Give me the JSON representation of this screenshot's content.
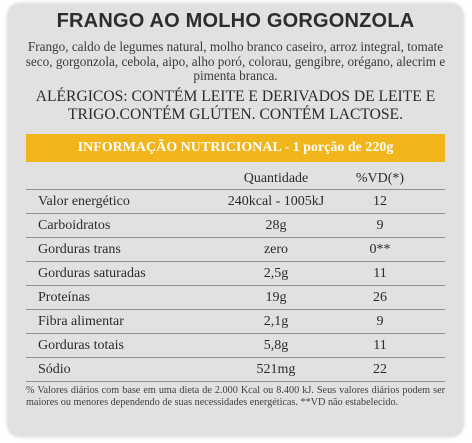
{
  "product": {
    "title": "FRANGO AO MOLHO GORGONZOLA",
    "ingredients": "Frango, caldo de legumes natural, molho branco caseiro, arroz integral, tomate seco, gorgonzola, cebola, aipo, alho poró, colorau, gengibre, orégano, alecrim e pimenta branca.",
    "allergens": "ALÉRGICOS: CONTÉM LEITE E DERIVADOS DE LEITE E TRIGO.CONTÉM GLÚTEN. CONTÉM LACTOSE."
  },
  "nutrition": {
    "banner": "INFORMAÇÃO NUTRICIONAL - 1 porção de 220g",
    "headers": {
      "name": "",
      "quantity": "Quantidade",
      "vd": "%VD(*)"
    },
    "rows": [
      {
        "name": "Valor energético",
        "quantity": "240kcal - 1005kJ",
        "vd": "12"
      },
      {
        "name": "Carboidratos",
        "quantity": "28g",
        "vd": "9"
      },
      {
        "name": "Gorduras trans",
        "quantity": "zero",
        "vd": "0**"
      },
      {
        "name": "Gorduras saturadas",
        "quantity": "2,5g",
        "vd": "11"
      },
      {
        "name": "Proteínas",
        "quantity": "19g",
        "vd": "26"
      },
      {
        "name": "Fibra alimentar",
        "quantity": "2,1g",
        "vd": "9"
      },
      {
        "name": "Gorduras totais",
        "quantity": "5,8g",
        "vd": "11"
      },
      {
        "name": "Sódio",
        "quantity": "521mg",
        "vd": "22"
      }
    ],
    "footnote": "% Valores diários com base em uma dieta de 2.000 Kcal ou 8.400 kJ. Seus valores diários podem ser maiores ou menores dependendo de suas necessidades energéticas. **VD não estabelecido."
  },
  "colors": {
    "card_background": "#e1e1e1",
    "banner_background": "#f2b51b",
    "banner_text": "#ffffff",
    "text": "#2b2b2b"
  }
}
